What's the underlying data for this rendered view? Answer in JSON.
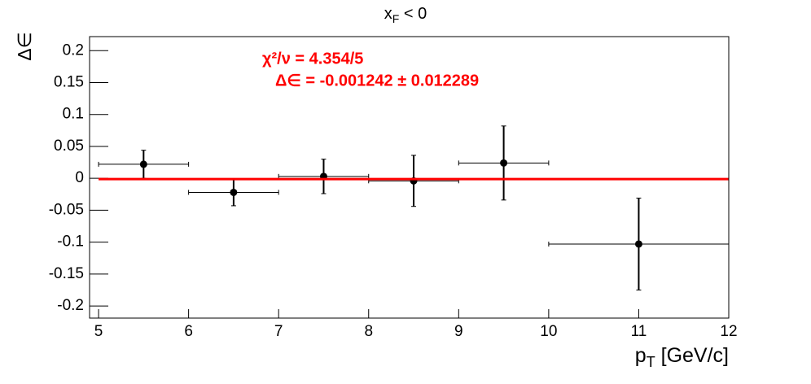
{
  "chart_data": {
    "type": "scatter",
    "title": [
      "x",
      "F",
      " < 0"
    ],
    "x_label": [
      "p",
      "T",
      " [GeV/c]"
    ],
    "y_label": "Δ∈",
    "annotations": [
      "χ²/ν = 4.354/5",
      "Δ∈ = -0.001242 ± 0.012289"
    ],
    "fit": {
      "value": -0.001242,
      "error": 0.012289,
      "color": "#ff0000"
    },
    "series": [
      {
        "color": "#000000",
        "x": [
          5.5,
          6.5,
          7.5,
          8.5,
          9.5,
          11
        ],
        "x_err": [
          0.5,
          0.5,
          0.5,
          0.5,
          0.5,
          1
        ],
        "values": [
          0.022,
          -0.022,
          0.003,
          -0.004,
          0.024,
          -0.103
        ],
        "y_err": [
          0.022,
          0.021,
          0.027,
          0.04,
          0.058,
          0.072
        ]
      }
    ],
    "xlim": [
      4.9,
      12
    ],
    "xticks": [
      5,
      6,
      7,
      8,
      9,
      10,
      11,
      12
    ],
    "ylim": [
      -0.219,
      0.222
    ],
    "yticks": [
      -0.2,
      -0.15,
      -0.1,
      -0.05,
      0,
      0.05,
      0.1,
      0.15,
      0.2
    ]
  }
}
